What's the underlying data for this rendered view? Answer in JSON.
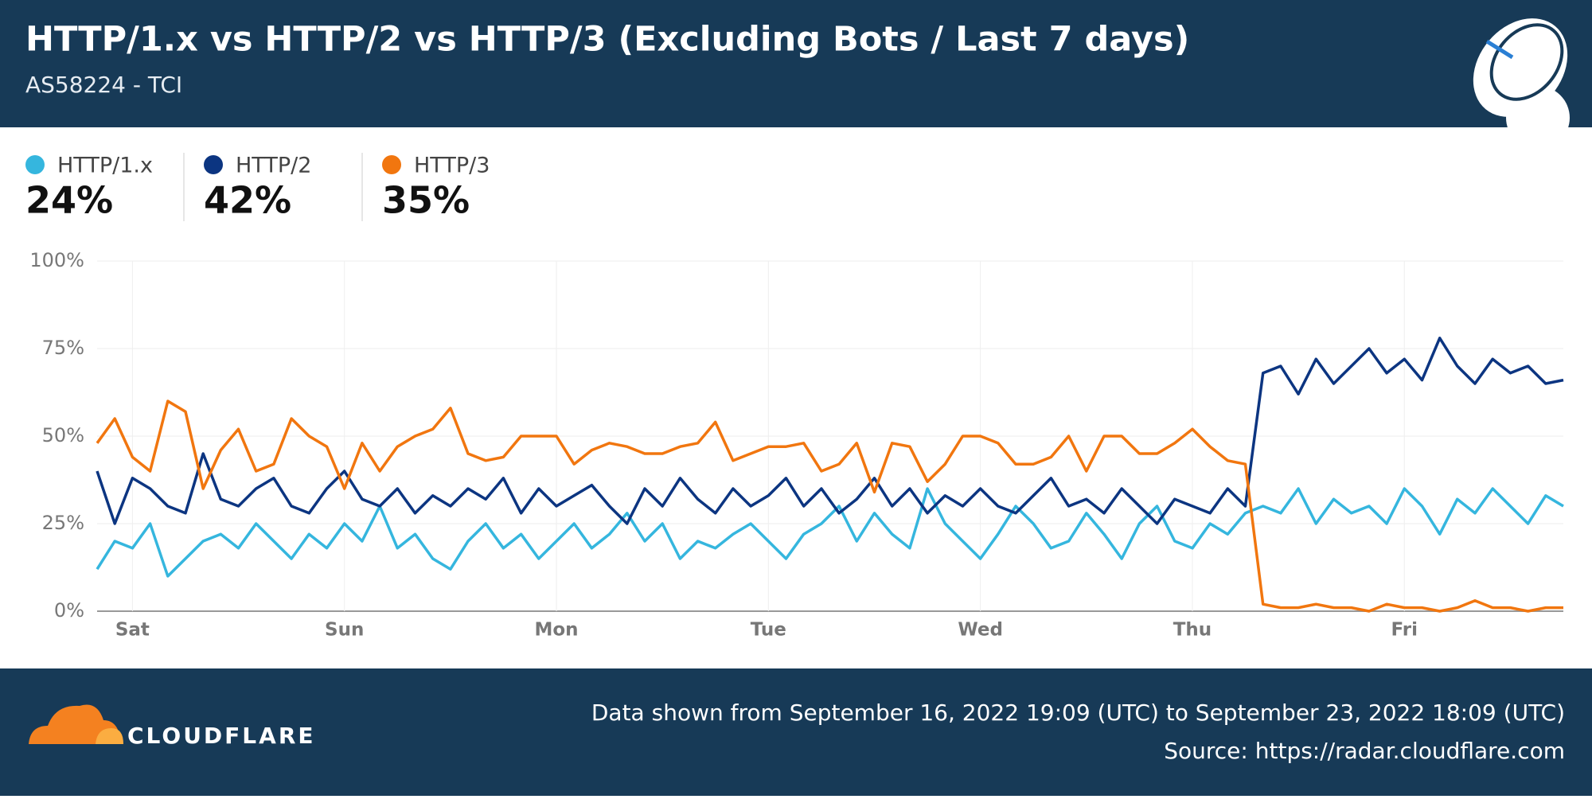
{
  "header": {
    "title": "HTTP/1.x vs HTTP/2 vs HTTP/3 (Excluding Bots / Last 7 days)",
    "subtitle": "AS58224 - TCI"
  },
  "legend": [
    {
      "name": "HTTP/1.x",
      "value": "24%"
    },
    {
      "name": "HTTP/2",
      "value": "42%"
    },
    {
      "name": "HTTP/3",
      "value": "35%"
    }
  ],
  "chart_data": {
    "type": "line",
    "grid": true,
    "categories": [
      null,
      null,
      "Sat",
      null,
      null,
      null,
      null,
      null,
      null,
      null,
      null,
      null,
      null,
      null,
      "Sun",
      null,
      null,
      null,
      null,
      null,
      null,
      null,
      null,
      null,
      null,
      null,
      "Mon",
      null,
      null,
      null,
      null,
      null,
      null,
      null,
      null,
      null,
      null,
      null,
      "Tue",
      null,
      null,
      null,
      null,
      null,
      null,
      null,
      null,
      null,
      null,
      null,
      "Wed",
      null,
      null,
      null,
      null,
      null,
      null,
      null,
      null,
      null,
      null,
      null,
      "Thu",
      null,
      null,
      null,
      null,
      null,
      null,
      null,
      null,
      null,
      null,
      null,
      "Fri",
      null,
      null,
      null,
      null,
      null,
      null,
      null,
      null,
      null
    ],
    "ylim": [
      0,
      100
    ],
    "yticks": [
      {
        "value": 0,
        "label": "0%"
      },
      {
        "value": 25,
        "label": "25%"
      },
      {
        "value": 50,
        "label": "50%"
      },
      {
        "value": 75,
        "label": "75%"
      },
      {
        "value": 100,
        "label": "100%"
      }
    ],
    "series": [
      {
        "name": "HTTP/1.x",
        "color": "#35b6de",
        "values": [
          12,
          20,
          18,
          25,
          10,
          15,
          20,
          22,
          18,
          25,
          20,
          15,
          22,
          18,
          25,
          20,
          30,
          18,
          22,
          15,
          12,
          20,
          25,
          18,
          22,
          15,
          20,
          25,
          18,
          22,
          28,
          20,
          25,
          15,
          20,
          18,
          22,
          25,
          20,
          15,
          22,
          25,
          30,
          20,
          28,
          22,
          18,
          35,
          25,
          20,
          15,
          22,
          30,
          25,
          18,
          20,
          28,
          22,
          15,
          25,
          30,
          20,
          18,
          25,
          22,
          28,
          30,
          28,
          35,
          25,
          32,
          28,
          30,
          25,
          35,
          30,
          22,
          32,
          28,
          35,
          30,
          25,
          33,
          30
        ]
      },
      {
        "name": "HTTP/2",
        "color": "#0c3581",
        "values": [
          40,
          25,
          38,
          35,
          30,
          28,
          45,
          32,
          30,
          35,
          38,
          30,
          28,
          35,
          40,
          32,
          30,
          35,
          28,
          33,
          30,
          35,
          32,
          38,
          28,
          35,
          30,
          33,
          36,
          30,
          25,
          35,
          30,
          38,
          32,
          28,
          35,
          30,
          33,
          38,
          30,
          35,
          28,
          32,
          38,
          30,
          35,
          28,
          33,
          30,
          35,
          30,
          28,
          33,
          38,
          30,
          32,
          28,
          35,
          30,
          25,
          32,
          30,
          28,
          35,
          30,
          68,
          70,
          62,
          72,
          65,
          70,
          75,
          68,
          72,
          66,
          78,
          70,
          65,
          72,
          68,
          70,
          65,
          66
        ]
      },
      {
        "name": "HTTP/3",
        "color": "#f1760f",
        "values": [
          48,
          55,
          44,
          40,
          60,
          57,
          35,
          46,
          52,
          40,
          42,
          55,
          50,
          47,
          35,
          48,
          40,
          47,
          50,
          52,
          58,
          45,
          43,
          44,
          50,
          50,
          50,
          42,
          46,
          48,
          47,
          45,
          45,
          47,
          48,
          54,
          43,
          45,
          47,
          47,
          48,
          40,
          42,
          48,
          34,
          48,
          47,
          37,
          42,
          50,
          50,
          48,
          42,
          42,
          44,
          50,
          40,
          50,
          50,
          45,
          45,
          48,
          52,
          47,
          43,
          42,
          2,
          1,
          1,
          2,
          1,
          1,
          0,
          2,
          1,
          1,
          0,
          1,
          3,
          1,
          1,
          0,
          1,
          1
        ]
      }
    ]
  },
  "footer": {
    "brand": "CLOUDFLARE",
    "range": "Data shown from September 16, 2022 19:09 (UTC) to September 23, 2022 18:09 (UTC)",
    "source": "Source: https://radar.cloudflare.com"
  }
}
